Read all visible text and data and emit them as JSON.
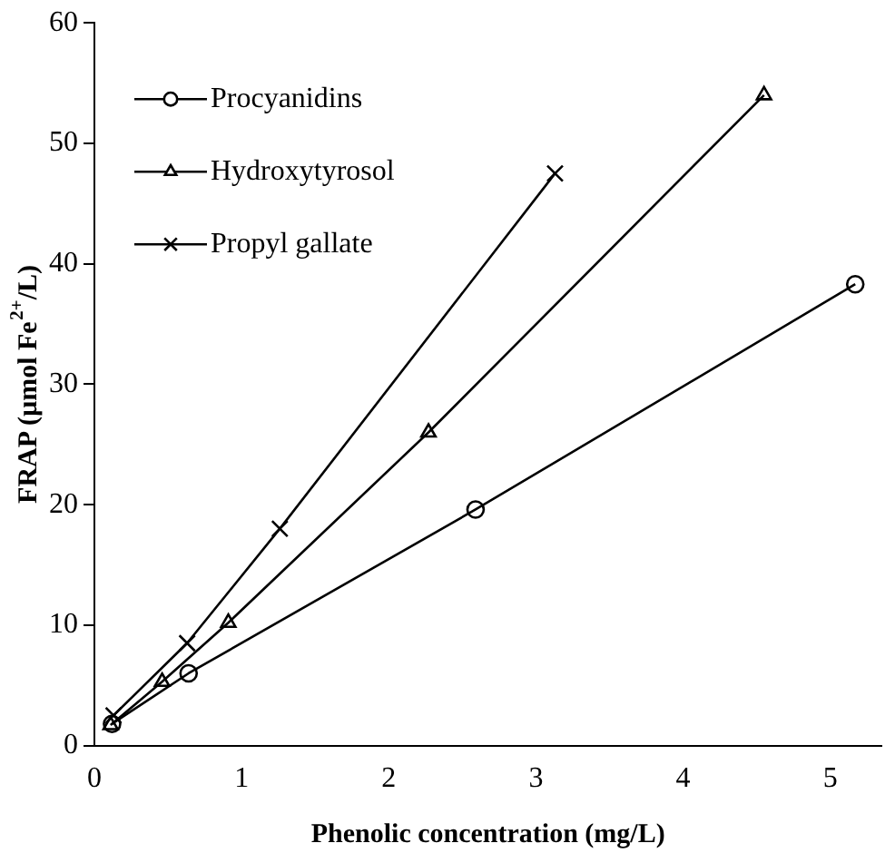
{
  "chart_data": {
    "type": "line",
    "xlabel": "Phenolic concentration (mg/L)",
    "ylabel": "FRAP (µmol Fe$^{2+}$/L)",
    "xlim": [
      0,
      5.35
    ],
    "xticks": [
      0,
      1,
      2,
      3,
      4,
      5
    ],
    "ylim": [
      0,
      60
    ],
    "yticks": [
      0,
      10,
      20,
      30,
      40,
      50,
      60
    ],
    "grid": false,
    "legend": "top left",
    "line_style": "solid",
    "series": [
      {
        "name": "Procyanidins",
        "color": "#000000",
        "marker": "circle",
        "x": [
          0.12,
          0.64,
          2.59,
          5.17
        ],
        "values": [
          1.8,
          6,
          19.6,
          38.3
        ]
      },
      {
        "name": "Hydroxytyrosol",
        "color": "#000000",
        "marker": "triangle",
        "x": [
          0.11,
          0.46,
          0.91,
          2.27,
          4.55
        ],
        "values": [
          1.7,
          5.3,
          10.2,
          26,
          54
        ]
      },
      {
        "name": "Propyl gallate",
        "color": "#000000",
        "marker": "cross",
        "x": [
          0.13,
          0.63,
          1.26,
          3.13
        ],
        "values": [
          2.5,
          8.5,
          18,
          47.5
        ]
      }
    ]
  }
}
